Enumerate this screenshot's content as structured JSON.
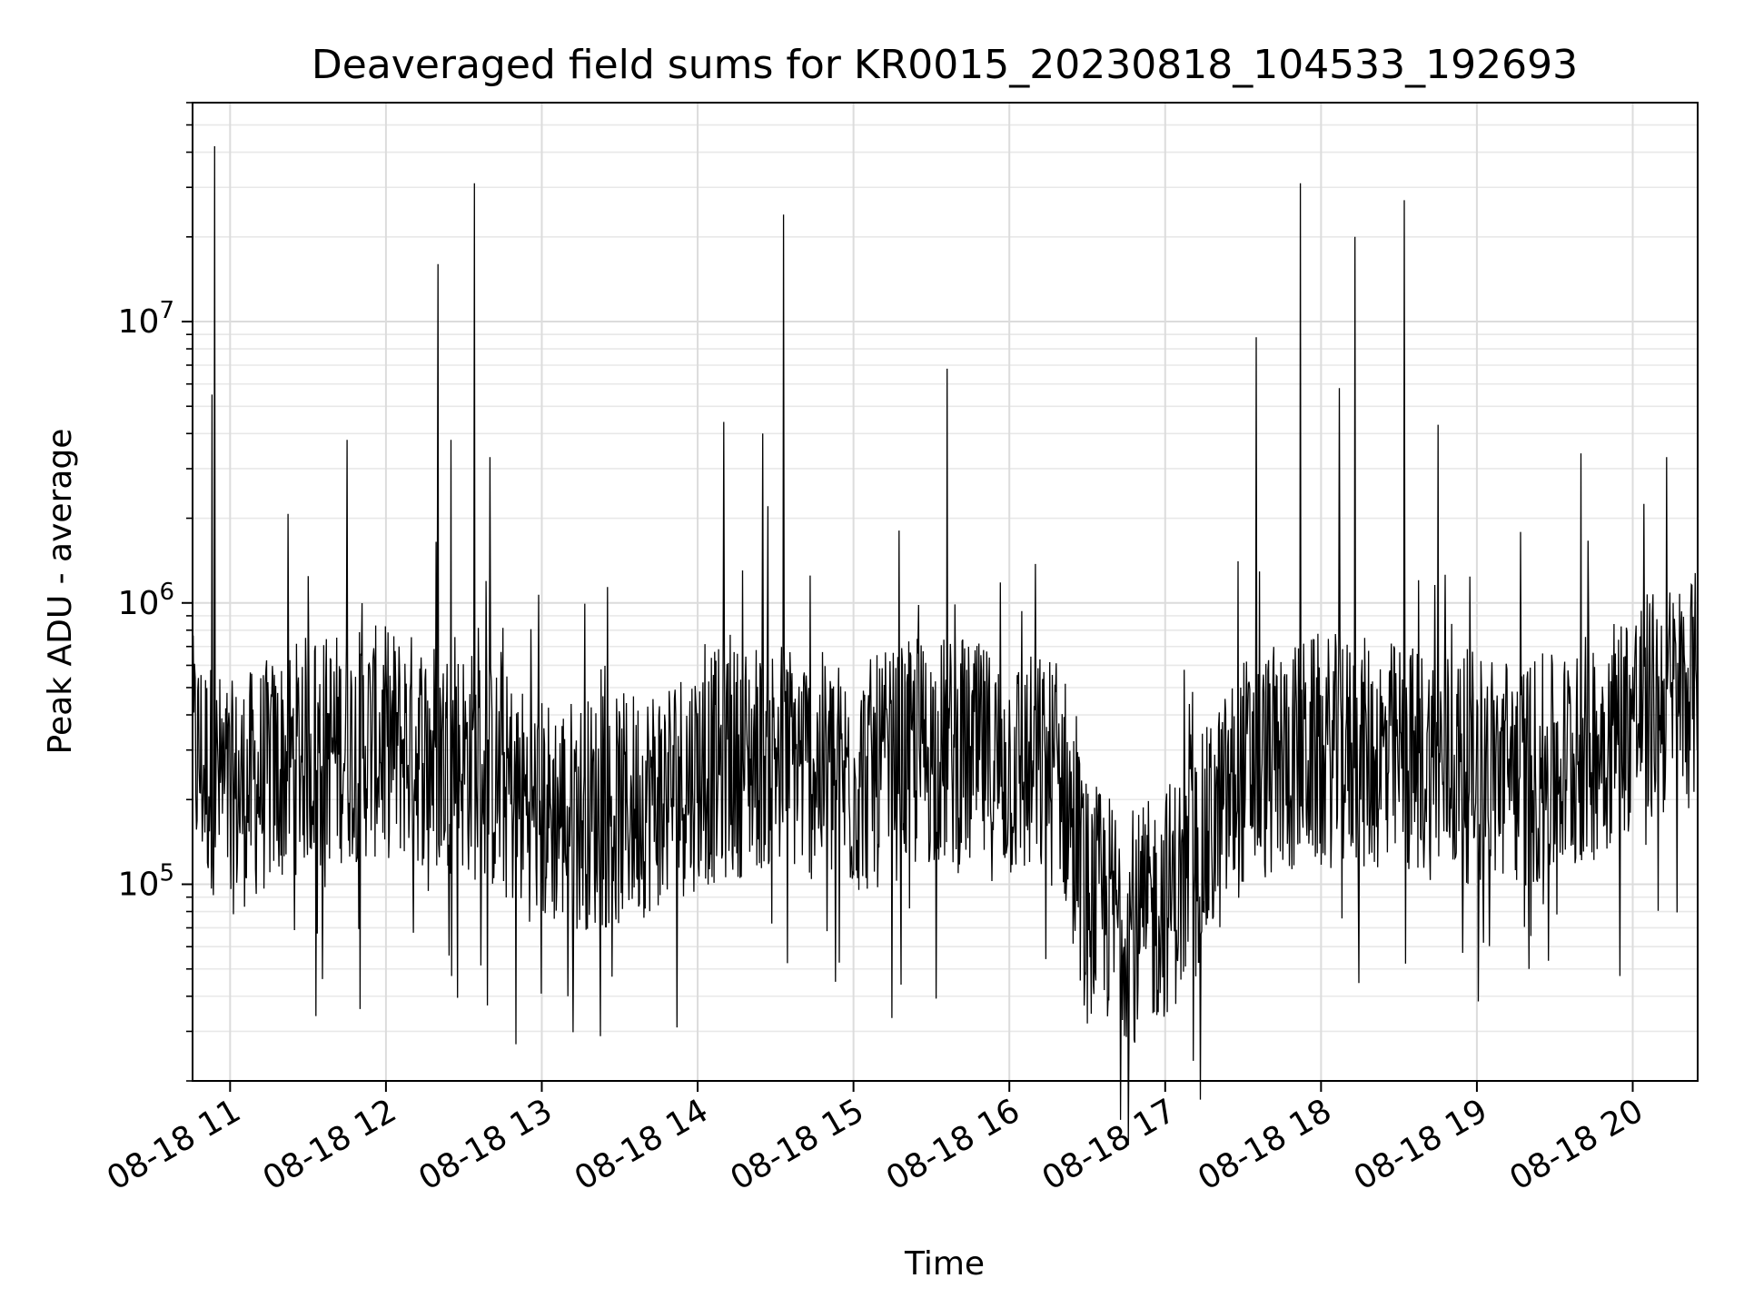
{
  "chart_data": {
    "type": "line",
    "title": "Deaveraged field sums for KR0015_20230818_104533_192693",
    "xlabel": "Time",
    "ylabel": "Peak ADU - average",
    "yscale": "log",
    "grid": "major and minor",
    "x_ticks": [
      "08-18 11",
      "08-18 12",
      "08-18 13",
      "08-18 14",
      "08-18 15",
      "08-18 16",
      "08-18 17",
      "08-18 18",
      "08-18 19",
      "08-18 20"
    ],
    "y_ticks": [
      {
        "base": "10",
        "exp": "5",
        "value": 100000
      },
      {
        "base": "10",
        "exp": "6",
        "value": 1000000
      },
      {
        "base": "10",
        "exp": "7",
        "value": 10000000
      }
    ],
    "x_range": [
      "2023-08-18 10:45:33",
      "2023-08-18 20:25"
    ],
    "ylim": [
      20000,
      60000000
    ],
    "series": [
      {
        "color": "#000000",
        "time_step_minutes": 5,
        "baseline": [
          {
            "time": "2023-08-18 10:45",
            "value": 300000
          },
          {
            "time": "2023-08-18 11:00",
            "value": 200000
          },
          {
            "time": "2023-08-18 11:30",
            "value": 300000
          },
          {
            "time": "2023-08-18 12:00",
            "value": 320000
          },
          {
            "time": "2023-08-18 12:30",
            "value": 280000
          },
          {
            "time": "2023-08-18 13:00",
            "value": 180000
          },
          {
            "time": "2023-08-18 13:30",
            "value": 180000
          },
          {
            "time": "2023-08-18 14:00",
            "value": 250000
          },
          {
            "time": "2023-08-18 14:30",
            "value": 300000
          },
          {
            "time": "2023-08-18 15:00",
            "value": 230000
          },
          {
            "time": "2023-08-18 15:30",
            "value": 300000
          },
          {
            "time": "2023-08-18 16:00",
            "value": 260000
          },
          {
            "time": "2023-08-18 16:20",
            "value": 250000
          },
          {
            "time": "2023-08-18 16:30",
            "value": 90000
          },
          {
            "time": "2023-08-18 16:50",
            "value": 70000
          },
          {
            "time": "2023-08-18 17:10",
            "value": 110000
          },
          {
            "time": "2023-08-18 17:30",
            "value": 250000
          },
          {
            "time": "2023-08-18 18:00",
            "value": 300000
          },
          {
            "time": "2023-08-18 18:30",
            "value": 280000
          },
          {
            "time": "2023-08-18 19:00",
            "value": 260000
          },
          {
            "time": "2023-08-18 19:30",
            "value": 250000
          },
          {
            "time": "2023-08-18 20:00",
            "value": 400000
          },
          {
            "time": "2023-08-18 20:25",
            "value": 500000
          }
        ],
        "spikes": [
          {
            "time": "2023-08-18 10:54",
            "value": 42000000
          },
          {
            "time": "2023-08-18 10:53",
            "value": 5500000
          },
          {
            "time": "2023-08-18 12:20",
            "value": 16000000
          },
          {
            "time": "2023-08-18 12:34",
            "value": 31000000
          },
          {
            "time": "2023-08-18 12:25",
            "value": 3800000
          },
          {
            "time": "2023-08-18 12:40",
            "value": 3300000
          },
          {
            "time": "2023-08-18 11:45",
            "value": 3800000
          },
          {
            "time": "2023-08-18 14:10",
            "value": 4400000
          },
          {
            "time": "2023-08-18 14:33",
            "value": 24000000
          },
          {
            "time": "2023-08-18 14:25",
            "value": 4000000
          },
          {
            "time": "2023-08-18 15:36",
            "value": 6800000
          },
          {
            "time": "2023-08-18 17:35",
            "value": 8800000
          },
          {
            "time": "2023-08-18 17:52",
            "value": 31000000
          },
          {
            "time": "2023-08-18 18:13",
            "value": 20000000
          },
          {
            "time": "2023-08-18 18:07",
            "value": 5800000
          },
          {
            "time": "2023-08-18 18:32",
            "value": 27000000
          },
          {
            "time": "2023-08-18 18:45",
            "value": 4300000
          },
          {
            "time": "2023-08-18 19:40",
            "value": 3400000
          },
          {
            "time": "2023-08-18 20:13",
            "value": 3300000
          }
        ],
        "dips": [
          {
            "time": "2023-08-18 11:33",
            "value": 34000
          },
          {
            "time": "2023-08-18 11:50",
            "value": 36000
          },
          {
            "time": "2023-08-18 12:50",
            "value": 27000
          },
          {
            "time": "2023-08-18 13:10",
            "value": 40000
          },
          {
            "time": "2023-08-18 14:53",
            "value": 45000
          },
          {
            "time": "2023-08-18 16:48",
            "value": 28000
          },
          {
            "time": "2023-08-18 16:30",
            "value": 32000
          },
          {
            "time": "2023-08-18 19:20",
            "value": 50000
          }
        ]
      }
    ]
  }
}
